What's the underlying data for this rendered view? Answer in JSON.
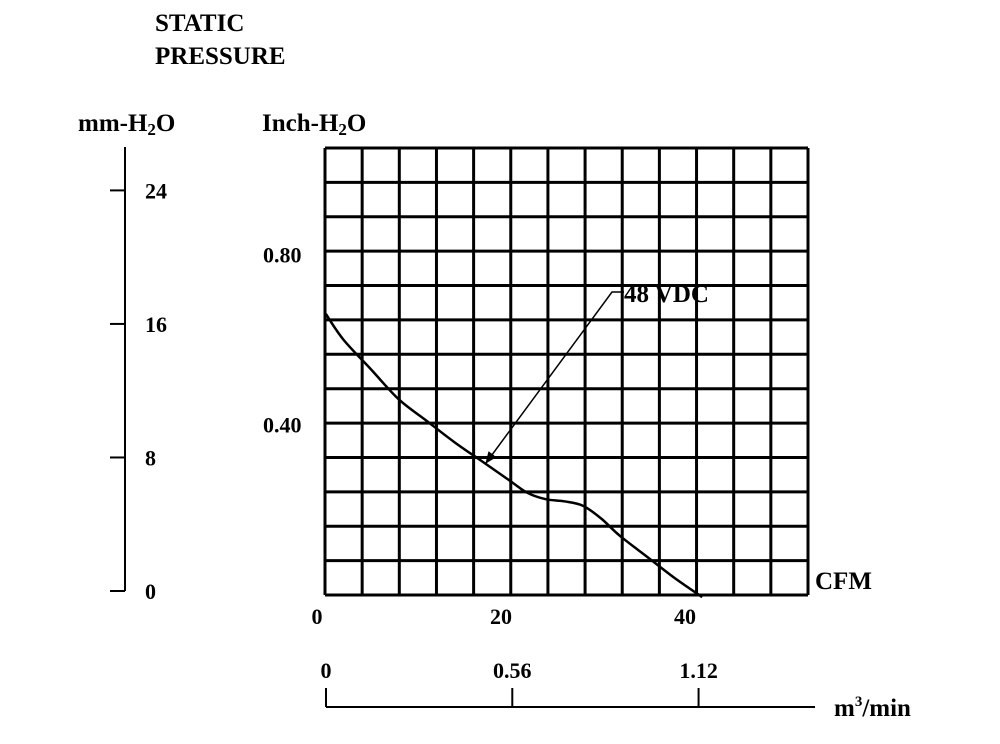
{
  "chart_data": {
    "type": "line",
    "title": "STATIC PRESSURE",
    "title_lines": [
      "STATIC",
      "PRESSURE"
    ],
    "left_axis": {
      "label_prefix": "mm-H",
      "label_sub": "2",
      "label_suffix": "O",
      "ticks": [
        "24",
        "16",
        "8",
        "0"
      ],
      "tick_values": [
        24,
        16,
        8,
        0
      ],
      "range": [
        0,
        26.6
      ]
    },
    "y_axis": {
      "label_prefix": "Inch-H",
      "label_sub": "2",
      "label_suffix": "O",
      "ticks": [
        "0.80",
        "0.40"
      ],
      "tick_values": [
        0.8,
        0.4
      ],
      "range": [
        0,
        1.05
      ]
    },
    "x_axis": {
      "label": "CFM",
      "ticks": [
        "0",
        "20",
        "40"
      ],
      "tick_values": [
        0,
        20,
        40
      ],
      "range": [
        0,
        52.5
      ]
    },
    "x_axis_metric": {
      "label_base": "m",
      "label_sup": "3",
      "label_suffix": "/min",
      "ticks": [
        "0",
        "0.56",
        "1.12"
      ],
      "tick_values": [
        0,
        0.56,
        1.12
      ],
      "range": [
        0,
        1.47
      ]
    },
    "grid": true,
    "grid_divisions_x": 13,
    "grid_divisions_y": 13,
    "series": [
      {
        "name": "48 VDC",
        "x": [
          0.1,
          2,
          5,
          8,
          11,
          14,
          17,
          20,
          22,
          24,
          26,
          28,
          30,
          32,
          35,
          38,
          41
        ],
        "y": [
          0.66,
          0.6,
          0.53,
          0.46,
          0.41,
          0.36,
          0.315,
          0.27,
          0.24,
          0.225,
          0.22,
          0.21,
          0.18,
          0.14,
          0.09,
          0.04,
          -0.005
        ]
      }
    ],
    "annotations": [
      {
        "text": "48 VDC",
        "points_to_series": "48 VDC",
        "target_x": 17.5,
        "target_y": 0.31
      }
    ]
  }
}
